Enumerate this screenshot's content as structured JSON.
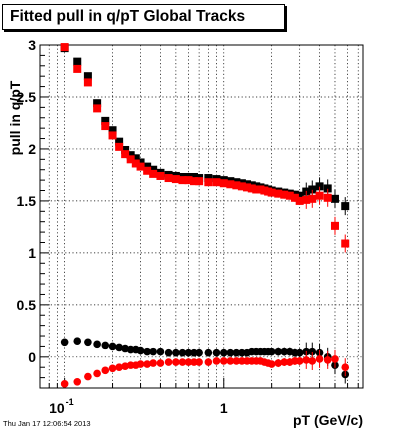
{
  "chart_data": {
    "type": "scatter",
    "title": "Fitted pull in q/pT  Global Tracks",
    "xlabel": "pT (GeV/c)",
    "ylabel": "pull in q/pT",
    "xscale": "log",
    "xlim": [
      0.07,
      7.5
    ],
    "ylim": [
      -0.3,
      3.0
    ],
    "grid": true,
    "y_ticks": [
      {
        "value": 0,
        "label": "0"
      },
      {
        "value": 0.5,
        "label": "0.5"
      },
      {
        "value": 1,
        "label": "1"
      },
      {
        "value": 1.5,
        "label": "1.5"
      },
      {
        "value": 2,
        "label": "2"
      },
      {
        "value": 2.5,
        "label": "2.5"
      },
      {
        "value": 3,
        "label": "3"
      }
    ],
    "x_tick_labels": [
      {
        "value": 0.1,
        "base": "10",
        "exponent": "-1"
      },
      {
        "value": 1,
        "base": "1",
        "exponent": ""
      }
    ],
    "series": [
      {
        "color": "#000000",
        "marker": "square",
        "x": [
          0.1,
          0.12,
          0.14,
          0.16,
          0.18,
          0.2,
          0.22,
          0.24,
          0.26,
          0.28,
          0.3,
          0.33,
          0.36,
          0.4,
          0.45,
          0.5,
          0.55,
          0.6,
          0.65,
          0.7,
          0.8,
          0.9,
          1.0,
          1.1,
          1.2,
          1.3,
          1.4,
          1.5,
          1.6,
          1.7,
          1.8,
          1.9,
          2.0,
          2.2,
          2.4,
          2.6,
          2.8,
          3.0,
          3.3,
          3.6,
          4.0,
          4.5,
          5.0,
          5.8
        ],
        "y": [
          2.97,
          2.84,
          2.7,
          2.44,
          2.27,
          2.18,
          2.07,
          1.99,
          1.94,
          1.91,
          1.87,
          1.83,
          1.8,
          1.77,
          1.75,
          1.74,
          1.73,
          1.73,
          1.73,
          1.72,
          1.72,
          1.71,
          1.7,
          1.69,
          1.68,
          1.67,
          1.66,
          1.65,
          1.64,
          1.63,
          1.62,
          1.61,
          1.6,
          1.59,
          1.58,
          1.57,
          1.56,
          1.55,
          1.59,
          1.61,
          1.64,
          1.62,
          1.52,
          1.45
        ]
      },
      {
        "color": "#ff0000",
        "marker": "square",
        "x": [
          0.1,
          0.12,
          0.14,
          0.16,
          0.18,
          0.2,
          0.22,
          0.24,
          0.26,
          0.28,
          0.3,
          0.33,
          0.36,
          0.4,
          0.45,
          0.5,
          0.55,
          0.6,
          0.65,
          0.7,
          0.8,
          0.9,
          1.0,
          1.1,
          1.2,
          1.3,
          1.4,
          1.5,
          1.6,
          1.7,
          1.8,
          1.9,
          2.0,
          2.2,
          2.4,
          2.6,
          2.8,
          3.0,
          3.3,
          3.6,
          4.0,
          4.5,
          5.0,
          5.8
        ],
        "y": [
          2.98,
          2.77,
          2.64,
          2.39,
          2.22,
          2.13,
          2.02,
          1.95,
          1.9,
          1.86,
          1.83,
          1.79,
          1.76,
          1.74,
          1.72,
          1.71,
          1.7,
          1.7,
          1.69,
          1.69,
          1.68,
          1.68,
          1.67,
          1.66,
          1.65,
          1.64,
          1.63,
          1.62,
          1.61,
          1.61,
          1.6,
          1.59,
          1.58,
          1.57,
          1.56,
          1.55,
          1.53,
          1.5,
          1.51,
          1.52,
          1.55,
          1.53,
          1.26,
          1.09
        ]
      },
      {
        "color": "#000000",
        "marker": "circle",
        "x": [
          0.1,
          0.12,
          0.14,
          0.16,
          0.18,
          0.2,
          0.22,
          0.24,
          0.26,
          0.28,
          0.3,
          0.33,
          0.36,
          0.4,
          0.45,
          0.5,
          0.55,
          0.6,
          0.65,
          0.7,
          0.8,
          0.9,
          1.0,
          1.1,
          1.2,
          1.3,
          1.4,
          1.5,
          1.6,
          1.7,
          1.8,
          1.9,
          2.0,
          2.2,
          2.4,
          2.6,
          2.8,
          3.0,
          3.3,
          3.6,
          4.0,
          4.5,
          5.0,
          5.8
        ],
        "y": [
          0.14,
          0.15,
          0.14,
          0.12,
          0.11,
          0.1,
          0.09,
          0.08,
          0.07,
          0.07,
          0.06,
          0.05,
          0.05,
          0.05,
          0.04,
          0.04,
          0.04,
          0.04,
          0.04,
          0.04,
          0.04,
          0.04,
          0.04,
          0.04,
          0.04,
          0.04,
          0.04,
          0.05,
          0.05,
          0.05,
          0.05,
          0.05,
          0.05,
          0.05,
          0.05,
          0.05,
          0.04,
          0.04,
          0.05,
          0.05,
          0.04,
          0.0,
          -0.08,
          -0.17
        ]
      },
      {
        "color": "#ff0000",
        "marker": "circle",
        "x": [
          0.1,
          0.12,
          0.14,
          0.16,
          0.18,
          0.2,
          0.22,
          0.24,
          0.26,
          0.28,
          0.3,
          0.33,
          0.36,
          0.4,
          0.45,
          0.5,
          0.55,
          0.6,
          0.65,
          0.7,
          0.8,
          0.9,
          1.0,
          1.1,
          1.2,
          1.3,
          1.4,
          1.5,
          1.6,
          1.7,
          1.8,
          1.9,
          2.0,
          2.2,
          2.4,
          2.6,
          2.8,
          3.0,
          3.3,
          3.6,
          4.0,
          4.5,
          5.0,
          5.8
        ],
        "y": [
          -0.26,
          -0.24,
          -0.19,
          -0.16,
          -0.13,
          -0.11,
          -0.1,
          -0.09,
          -0.08,
          -0.08,
          -0.07,
          -0.07,
          -0.06,
          -0.06,
          -0.05,
          -0.05,
          -0.05,
          -0.05,
          -0.05,
          -0.05,
          -0.05,
          -0.04,
          -0.04,
          -0.04,
          -0.04,
          -0.04,
          -0.04,
          -0.04,
          -0.04,
          -0.04,
          -0.05,
          -0.06,
          -0.07,
          -0.06,
          -0.05,
          -0.05,
          -0.04,
          -0.04,
          -0.03,
          -0.04,
          -0.02,
          -0.03,
          -0.02,
          -0.1
        ]
      }
    ]
  },
  "footer": {
    "datetime": "Thu Jan 17 12:06:54 2013"
  }
}
